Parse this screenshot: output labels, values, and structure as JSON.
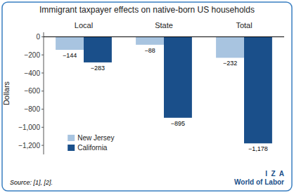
{
  "chart_data": {
    "type": "bar",
    "title": "Immigrant taxpayer effects on native-born US households",
    "categories": [
      "Local",
      "State",
      "Total"
    ],
    "series": [
      {
        "name": "New Jersey",
        "color": "#A8C4E0",
        "values": [
          -144,
          -88,
          -232
        ],
        "value_labels": [
          "−144",
          "−88",
          "−232"
        ]
      },
      {
        "name": "California",
        "color": "#1A4F8A",
        "values": [
          -283,
          -895,
          -1178
        ],
        "value_labels": [
          "−283",
          "−895",
          "−1,178"
        ]
      }
    ],
    "ylabel": "Dollars",
    "ylim": [
      -1300,
      50
    ],
    "yticks": [
      0,
      {
        "value": -200,
        "label": "−200"
      },
      {
        "value": -400,
        "label": "−400"
      },
      {
        "value": -600,
        "label": "−600"
      },
      {
        "value": -800,
        "label": "−800"
      },
      {
        "value": -1000,
        "label": "−1,000"
      },
      {
        "value": -1200,
        "label": "−1,200"
      }
    ],
    "data_labels": true,
    "legend": "lower left",
    "grid": false,
    "annotations": [
      "Source: [1], [2].",
      "I  Z  A",
      "World of Labor"
    ]
  }
}
